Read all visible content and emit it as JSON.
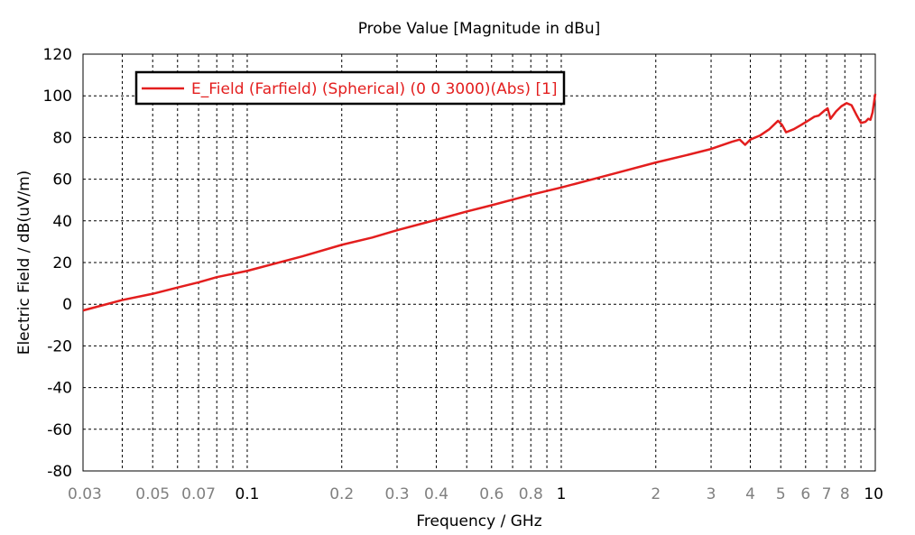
{
  "chart_data": {
    "type": "line",
    "title": "Probe Value [Magnitude in dBu]",
    "xlabel": "Frequency / GHz",
    "ylabel": "Electric Field / dB(uV/m)",
    "x_scale": "log",
    "xlim": [
      0.03,
      10
    ],
    "ylim": [
      -80,
      120
    ],
    "grid": true,
    "legend_position": "top-left",
    "x_ticks": [
      {
        "value": 0.03,
        "label": "0.03",
        "major": false
      },
      {
        "value": 0.05,
        "label": "0.05",
        "major": false
      },
      {
        "value": 0.07,
        "label": "0.07",
        "major": false
      },
      {
        "value": 0.1,
        "label": "0.1",
        "major": true
      },
      {
        "value": 0.2,
        "label": "0.2",
        "major": false
      },
      {
        "value": 0.3,
        "label": "0.3",
        "major": false
      },
      {
        "value": 0.4,
        "label": "0.4",
        "major": false
      },
      {
        "value": 0.6,
        "label": "0.6",
        "major": false
      },
      {
        "value": 0.8,
        "label": "0.8",
        "major": false
      },
      {
        "value": 1,
        "label": "1",
        "major": true
      },
      {
        "value": 2,
        "label": "2",
        "major": false
      },
      {
        "value": 3,
        "label": "3",
        "major": false
      },
      {
        "value": 4,
        "label": "4",
        "major": false
      },
      {
        "value": 5,
        "label": "5",
        "major": false
      },
      {
        "value": 6,
        "label": "6",
        "major": false
      },
      {
        "value": 7,
        "label": "7",
        "major": false
      },
      {
        "value": 8,
        "label": "8",
        "major": false
      },
      {
        "value": 10,
        "label": "10",
        "major": true
      }
    ],
    "x_gridlines": [
      0.03,
      0.04,
      0.05,
      0.06,
      0.07,
      0.08,
      0.09,
      0.1,
      0.2,
      0.3,
      0.4,
      0.5,
      0.6,
      0.7,
      0.8,
      0.9,
      1,
      2,
      3,
      4,
      5,
      6,
      7,
      8,
      9,
      10
    ],
    "y_ticks": [
      -80,
      -60,
      -40,
      -20,
      0,
      20,
      40,
      60,
      80,
      100,
      120
    ],
    "colors": {
      "series": "#e31e1e",
      "grid": "#000000",
      "major_tick_label": "#000000",
      "minor_tick_label": "#808080"
    },
    "series": [
      {
        "name": "E_Field (Farfield) (Spherical) (0 0 3000)(Abs) [1]",
        "color": "#e31e1e",
        "points": [
          [
            0.03,
            -3
          ],
          [
            0.04,
            2
          ],
          [
            0.05,
            5
          ],
          [
            0.06,
            8
          ],
          [
            0.07,
            10.5
          ],
          [
            0.08,
            13
          ],
          [
            0.1,
            16
          ],
          [
            0.15,
            23
          ],
          [
            0.2,
            28.5
          ],
          [
            0.25,
            32
          ],
          [
            0.3,
            35.5
          ],
          [
            0.4,
            40.5
          ],
          [
            0.5,
            44.5
          ],
          [
            0.6,
            47.5
          ],
          [
            0.8,
            52.5
          ],
          [
            1,
            56
          ],
          [
            1.5,
            63
          ],
          [
            2,
            68
          ],
          [
            2.5,
            71.5
          ],
          [
            3,
            74.5
          ],
          [
            3.5,
            78
          ],
          [
            3.7,
            79
          ],
          [
            3.85,
            76.5
          ],
          [
            4.0,
            79
          ],
          [
            4.3,
            81
          ],
          [
            4.6,
            84
          ],
          [
            4.9,
            88
          ],
          [
            5.05,
            86
          ],
          [
            5.2,
            82.5
          ],
          [
            5.5,
            84
          ],
          [
            5.8,
            86
          ],
          [
            6.1,
            88
          ],
          [
            6.4,
            90
          ],
          [
            6.6,
            90.5
          ],
          [
            6.9,
            93
          ],
          [
            7.05,
            94
          ],
          [
            7.2,
            89
          ],
          [
            7.5,
            92.5
          ],
          [
            7.8,
            95
          ],
          [
            8.1,
            96.5
          ],
          [
            8.4,
            95.5
          ],
          [
            8.7,
            91
          ],
          [
            9.0,
            87
          ],
          [
            9.3,
            87.5
          ],
          [
            9.5,
            89
          ],
          [
            9.65,
            88.5
          ],
          [
            9.8,
            92
          ],
          [
            10,
            101
          ]
        ]
      }
    ]
  }
}
